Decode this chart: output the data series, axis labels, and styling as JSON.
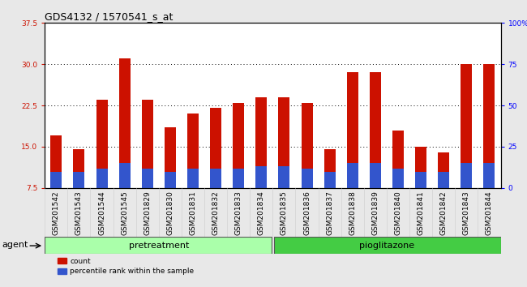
{
  "title": "GDS4132 / 1570541_s_at",
  "samples": [
    "GSM201542",
    "GSM201543",
    "GSM201544",
    "GSM201545",
    "GSM201829",
    "GSM201830",
    "GSM201831",
    "GSM201832",
    "GSM201833",
    "GSM201834",
    "GSM201835",
    "GSM201836",
    "GSM201837",
    "GSM201838",
    "GSM201839",
    "GSM201840",
    "GSM201841",
    "GSM201842",
    "GSM201843",
    "GSM201844"
  ],
  "count_values": [
    17.0,
    14.5,
    23.5,
    31.0,
    23.5,
    18.5,
    21.0,
    22.0,
    23.0,
    24.0,
    24.0,
    23.0,
    14.5,
    28.5,
    28.5,
    18.0,
    15.0,
    14.0,
    30.0,
    30.0
  ],
  "percentile_values": [
    10.5,
    10.5,
    11.0,
    12.0,
    11.0,
    10.5,
    11.0,
    11.0,
    11.0,
    11.5,
    11.5,
    11.0,
    10.5,
    12.0,
    12.0,
    11.0,
    10.5,
    10.5,
    12.0,
    12.0
  ],
  "n_pretreatment": 10,
  "n_pioglitazone": 10,
  "ylim_left": [
    7.5,
    37.5
  ],
  "ylim_right": [
    0,
    100
  ],
  "yticks_left": [
    7.5,
    15.0,
    22.5,
    30.0,
    37.5
  ],
  "yticks_right": [
    0,
    25,
    50,
    75,
    100
  ],
  "bar_color_red": "#cc1100",
  "bar_color_blue": "#3355cc",
  "bar_width": 0.5,
  "bg_color": "#e8e8e8",
  "plot_bg_color": "#ffffff",
  "pretreatment_color": "#aaffaa",
  "pioglitazone_color": "#44cc44",
  "agent_label": "agent",
  "pretreatment_label": "pretreatment",
  "pioglitazone_label": "pioglitazone",
  "legend_count": "count",
  "legend_percentile": "percentile rank within the sample",
  "title_fontsize": 9,
  "tick_fontsize": 6.5,
  "label_fontsize": 8
}
